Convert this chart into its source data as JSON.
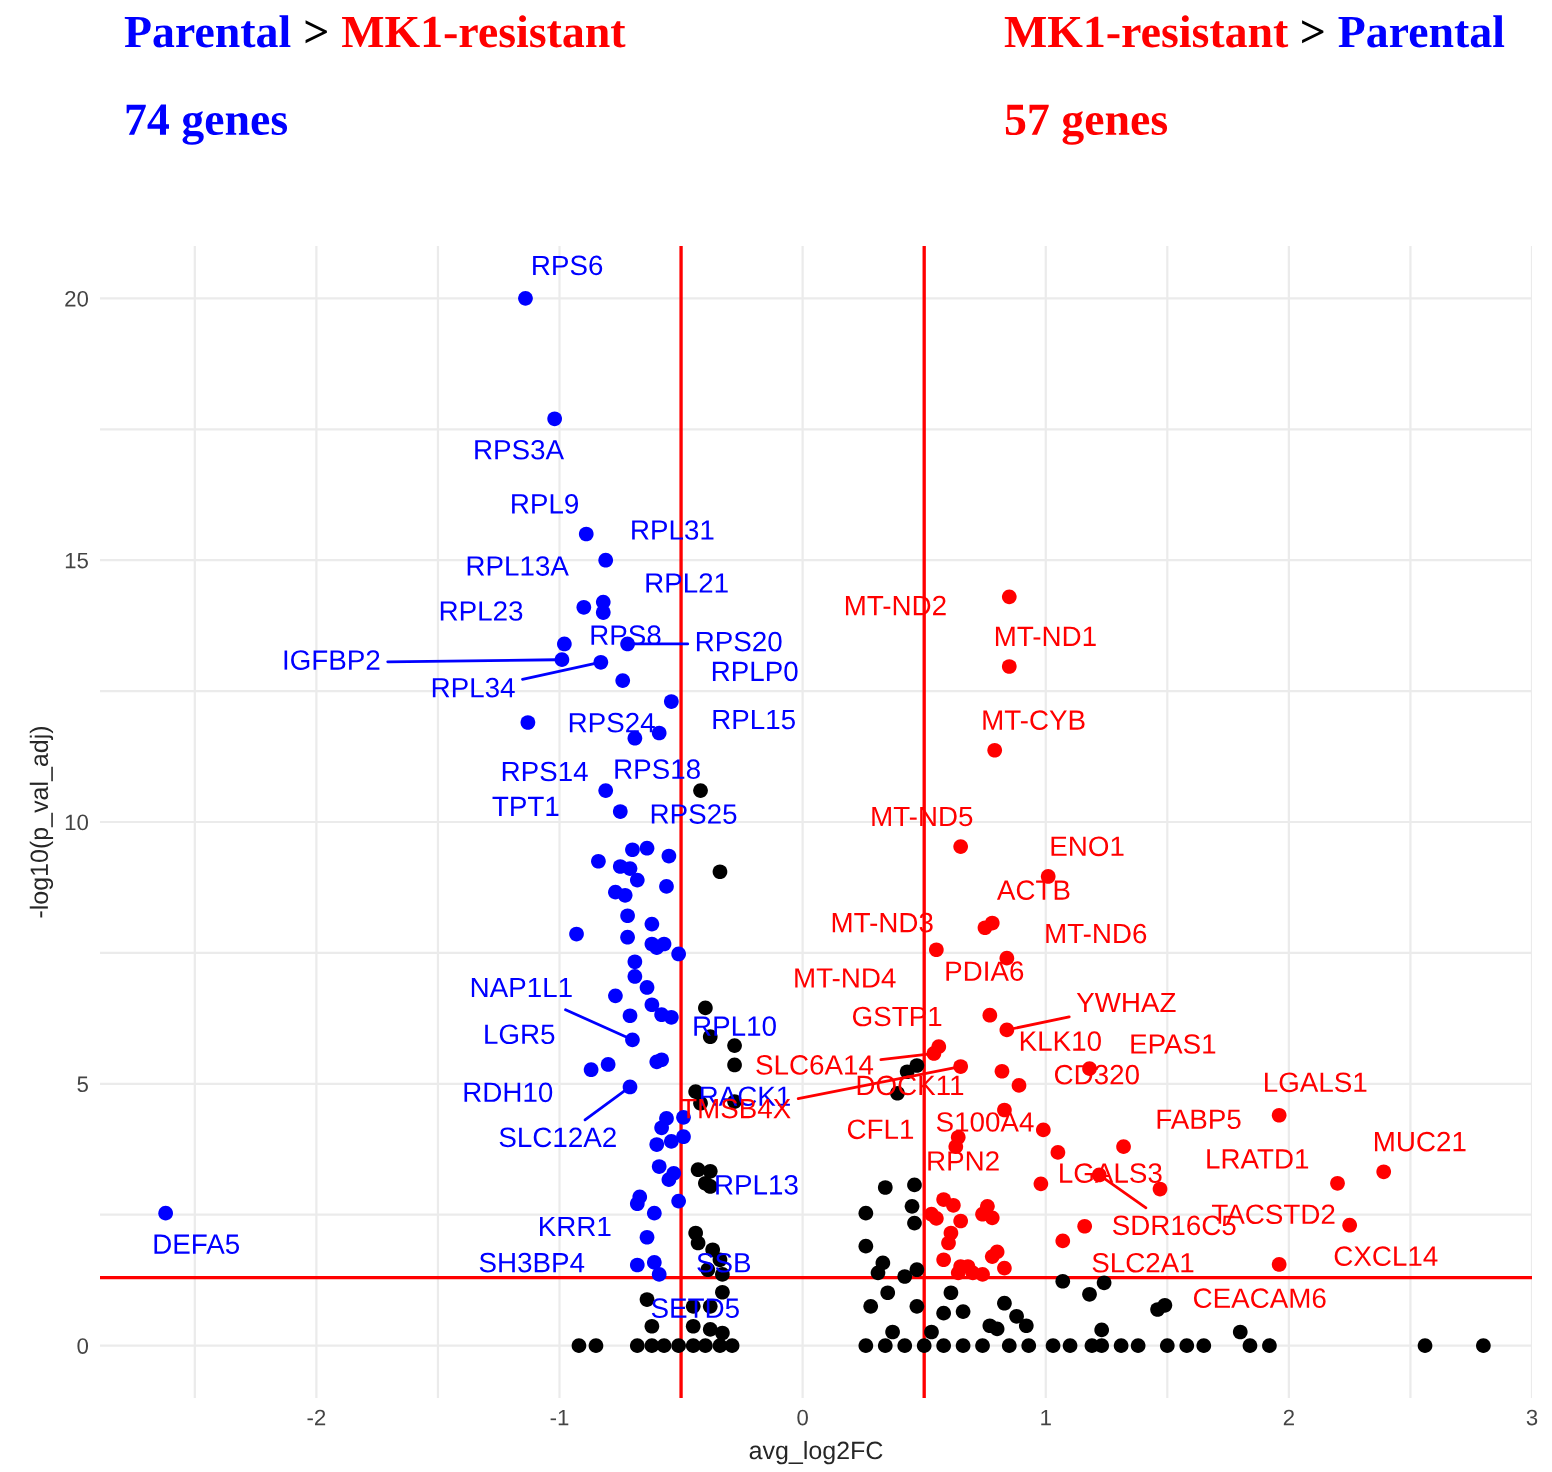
{
  "chart_data": {
    "type": "scatter",
    "xlabel": "avg_log2FC",
    "ylabel": "-log10(p_val_adj)",
    "xlim": [
      -2.89,
      3.0
    ],
    "ylim": [
      -1,
      21
    ],
    "xticks": [
      {
        "value": -2.5,
        "label": null
      },
      -2,
      {
        "value": -1.5,
        "label": null
      },
      -1,
      0,
      1,
      {
        "value": 1.5,
        "label": null
      },
      2,
      {
        "value": 2.5,
        "label": null
      },
      3
    ],
    "yticks": [
      0,
      {
        "value": 2.5,
        "label": null
      },
      5,
      {
        "value": 7.5,
        "label": null
      },
      10,
      {
        "value": 12.5,
        "label": null
      },
      15,
      {
        "value": 17.5,
        "label": null
      },
      20
    ],
    "grid": true,
    "legend": false,
    "marker": "circle",
    "series": [
      {
        "color": "#0000ff",
        "x": [
          -1.14,
          -1.02,
          -0.89,
          -0.81,
          -0.9,
          -0.82,
          -0.98,
          -0.82,
          -0.99,
          -0.83,
          -0.72,
          -0.74,
          -0.54,
          -0.59,
          -0.69,
          -1.13,
          -0.81,
          -0.75,
          -0.7,
          -0.64,
          -0.55,
          -0.84,
          -0.75,
          -0.71,
          -0.68,
          -0.56,
          -0.77,
          -0.73,
          -0.72,
          -0.62,
          -0.93,
          -0.72,
          -0.62,
          -0.57,
          -0.6,
          -0.51,
          -0.69,
          -0.69,
          -0.64,
          -0.77,
          -0.71,
          -0.62,
          -0.58,
          -0.54,
          -0.7,
          -0.6,
          -0.58,
          -0.87,
          -0.8,
          -0.71,
          -0.56,
          -0.49,
          -0.58,
          -0.6,
          -0.54,
          -0.49,
          -0.59,
          -0.55,
          -0.53,
          -0.68,
          -0.67,
          -0.61,
          -0.51,
          -0.64,
          -0.68,
          -0.61,
          -0.59,
          -2.62
        ],
        "values": [
          20.0,
          17.7,
          15.5,
          15.0,
          14.1,
          14.2,
          13.4,
          14.0,
          13.1,
          13.05,
          13.4,
          12.7,
          12.3,
          11.7,
          11.6,
          11.9,
          10.6,
          10.2,
          9.47,
          9.5,
          9.35,
          9.25,
          9.15,
          9.11,
          8.89,
          8.77,
          8.66,
          8.6,
          8.21,
          8.05,
          7.86,
          7.8,
          7.67,
          7.67,
          7.6,
          7.48,
          7.33,
          7.05,
          6.84,
          6.68,
          6.3,
          6.51,
          6.32,
          6.27,
          5.84,
          5.42,
          5.46,
          5.27,
          5.37,
          4.94,
          4.34,
          4.36,
          4.16,
          3.84,
          3.9,
          3.99,
          3.42,
          3.17,
          3.29,
          2.71,
          2.84,
          2.53,
          2.76,
          2.07,
          1.54,
          1.59,
          1.36,
          2.53
        ]
      },
      {
        "color": "#ff0000",
        "x": [
          0.85,
          0.85,
          0.79,
          0.65,
          1.01,
          0.78,
          0.75,
          0.55,
          0.84,
          0.77,
          0.84,
          0.56,
          0.54,
          0.65,
          0.82,
          0.89,
          1.18,
          0.83,
          1.96,
          0.64,
          0.63,
          0.99,
          1.05,
          1.32,
          2.39,
          2.2,
          1.47,
          1.22,
          0.98,
          2.25,
          1.16,
          1.07,
          1.96,
          0.53,
          0.58,
          0.62,
          0.65,
          0.55,
          0.74,
          0.78,
          0.76,
          0.61,
          0.6,
          0.58,
          0.8,
          0.78,
          0.83,
          0.65,
          0.68,
          0.7,
          0.74,
          0.64
        ],
        "values": [
          14.3,
          12.97,
          11.37,
          9.53,
          8.96,
          8.07,
          7.98,
          7.56,
          7.4,
          6.31,
          6.03,
          5.71,
          5.58,
          5.33,
          5.24,
          4.97,
          5.29,
          4.5,
          4.4,
          3.98,
          3.8,
          4.12,
          3.69,
          3.8,
          3.32,
          3.1,
          2.99,
          3.26,
          3.09,
          2.3,
          2.28,
          2.0,
          1.55,
          2.51,
          2.79,
          2.68,
          2.38,
          2.43,
          2.51,
          2.44,
          2.66,
          2.15,
          1.96,
          1.64,
          1.79,
          1.7,
          1.48,
          1.51,
          1.51,
          1.39,
          1.36,
          1.39
        ]
      },
      {
        "color": "#000000",
        "x": [
          0.26,
          0.34,
          0.42,
          0.5,
          0.58,
          0.66,
          0.74,
          0.85,
          0.93,
          1.03,
          1.1,
          1.19,
          1.23,
          1.31,
          1.38,
          1.5,
          1.58,
          1.65,
          1.84,
          1.92,
          2.56,
          2.8,
          0.34,
          0.46,
          0.26,
          0.45,
          0.46,
          0.26,
          0.33,
          0.31,
          0.42,
          0.47,
          1.07,
          1.18,
          1.24,
          1.46,
          1.49,
          1.8,
          1.23,
          0.35,
          0.28,
          0.47,
          0.58,
          0.66,
          0.77,
          0.83,
          0.88,
          0.92,
          0.37,
          0.53,
          0.61,
          0.8,
          0.43,
          0.47,
          0.39,
          -0.42,
          -0.34,
          -0.4,
          -0.38,
          -0.28,
          -0.28,
          -0.44,
          -0.42,
          -0.28,
          -0.43,
          -0.38,
          -0.4,
          -0.38,
          -0.44,
          -0.43,
          -0.37,
          -0.34,
          -0.39,
          -0.33,
          -0.33,
          -0.64,
          -0.45,
          -0.38,
          -0.62,
          -0.45,
          -0.38,
          -0.33,
          -0.92,
          -0.85,
          -0.68,
          -0.62,
          -0.57,
          -0.51,
          -0.45,
          -0.4,
          -0.34,
          -0.29
        ],
        "values": [
          0,
          0,
          0,
          0,
          0,
          0,
          0,
          0,
          0,
          0,
          0,
          0,
          0,
          0,
          0,
          0,
          0,
          0,
          0,
          0,
          0,
          0,
          3.02,
          3.07,
          2.53,
          2.66,
          2.34,
          1.9,
          1.58,
          1.39,
          1.32,
          1.45,
          1.23,
          0.98,
          1.2,
          0.69,
          0.77,
          0.26,
          0.3,
          1.01,
          0.75,
          0.75,
          0.62,
          0.65,
          0.38,
          0.81,
          0.56,
          0.38,
          0.26,
          0.26,
          1.01,
          0.32,
          5.23,
          5.35,
          4.82,
          10.6,
          9.05,
          6.45,
          5.9,
          5.73,
          5.36,
          4.85,
          4.63,
          4.66,
          3.36,
          3.33,
          3.1,
          3.04,
          2.15,
          1.96,
          1.83,
          1.64,
          1.45,
          1.36,
          1.02,
          0.88,
          0.75,
          0.75,
          0.37,
          0.37,
          0.31,
          0.24,
          0,
          0,
          0,
          0,
          0,
          0,
          0,
          0,
          0,
          0
        ]
      }
    ],
    "ref_lines": [
      {
        "axis": "x",
        "value": -0.5,
        "color": "#ff0000"
      },
      {
        "axis": "x",
        "value": 0.5,
        "color": "#ff0000"
      },
      {
        "axis": "y",
        "value": 1.3,
        "color": "#ff0000"
      }
    ],
    "annotations": [
      "Parental",
      ">",
      "MK1-resistant",
      "74 genes",
      "MK1-resistant",
      ">",
      "Parental",
      "57 genes",
      {
        "text": "RPS6",
        "x": -1.14,
        "y": 20.0
      },
      {
        "text": "RPS3A",
        "x": -1.02,
        "y": 17.7
      },
      {
        "text": "RPL9",
        "x": -0.89,
        "y": 15.5
      },
      {
        "text": "RPL31",
        "x": -0.81,
        "y": 15.0
      },
      {
        "text": "RPL13A",
        "x": -0.9,
        "y": 14.1
      },
      {
        "text": "RPL21",
        "x": -0.82,
        "y": 14.2
      },
      {
        "text": "RPL23",
        "x": -0.98,
        "y": 13.4
      },
      {
        "text": "RPS8",
        "x": -0.82,
        "y": 14.0
      },
      {
        "text": "IGFBP2",
        "x": -0.99,
        "y": 13.1
      },
      {
        "text": "RPL34",
        "x": -0.83,
        "y": 13.05
      },
      {
        "text": "RPS20",
        "x": -0.72,
        "y": 13.4
      },
      {
        "text": "RPS24",
        "x": -0.74,
        "y": 12.7
      },
      {
        "text": "RPLP0",
        "x": -0.54,
        "y": 12.3
      },
      {
        "text": "RPL15",
        "x": -0.59,
        "y": 11.7
      },
      {
        "text": "RPS18",
        "x": -0.69,
        "y": 11.6
      },
      {
        "text": "RPS14",
        "x": -0.81,
        "y": 10.6
      },
      {
        "text": "TPT1",
        "x": -0.75,
        "y": 10.2
      },
      {
        "text": "RPS25",
        "x": -0.7,
        "y": 9.47
      },
      {
        "text": "NAP1L1",
        "x": -0.7,
        "y": 5.84
      },
      {
        "text": "LGR5",
        "x": -0.8,
        "y": 5.37
      },
      {
        "text": "RPL10",
        "x": -0.6,
        "y": 5.42
      },
      {
        "text": "RDH10",
        "x": -0.87,
        "y": 5.27
      },
      {
        "text": "RACK1",
        "x": -0.58,
        "y": 5.46
      },
      {
        "text": "SLC12A2",
        "x": -0.71,
        "y": 4.94
      },
      {
        "text": "KRR1",
        "x": -0.64,
        "y": 2.07
      },
      {
        "text": "RPL13",
        "x": -0.51,
        "y": 2.76
      },
      {
        "text": "SH3BP4",
        "x": -0.68,
        "y": 1.54
      },
      {
        "text": "SSB",
        "x": -0.61,
        "y": 1.59
      },
      {
        "text": "SETD5",
        "x": -0.59,
        "y": 1.36
      },
      {
        "text": "DEFA5",
        "x": -2.62,
        "y": 2.53
      },
      {
        "text": "MT-ND2",
        "x": 0.85,
        "y": 14.3
      },
      {
        "text": "MT-ND1",
        "x": 0.85,
        "y": 12.97
      },
      {
        "text": "MT-CYB",
        "x": 0.79,
        "y": 11.37
      },
      {
        "text": "MT-ND5",
        "x": 0.65,
        "y": 9.53
      },
      {
        "text": "ENO1",
        "x": 1.01,
        "y": 8.96
      },
      {
        "text": "ACTB",
        "x": 0.78,
        "y": 8.07
      },
      {
        "text": "MT-ND3",
        "x": 0.75,
        "y": 7.98
      },
      {
        "text": "MT-ND6",
        "x": 0.84,
        "y": 7.4
      },
      {
        "text": "MT-ND4",
        "x": 0.55,
        "y": 7.56
      },
      {
        "text": "PDIA6",
        "x": 0.77,
        "y": 6.31
      },
      {
        "text": "YWHAZ",
        "x": 0.84,
        "y": 6.03
      },
      {
        "text": "GSTP1",
        "x": 0.56,
        "y": 5.71
      },
      {
        "text": "SLC6A14",
        "x": 0.54,
        "y": 5.58
      },
      {
        "text": "TMSB4X",
        "x": 0.65,
        "y": 5.33
      },
      {
        "text": "KLK10",
        "x": 0.82,
        "y": 5.24
      },
      {
        "text": "EPAS1",
        "x": 1.18,
        "y": 5.29
      },
      {
        "text": "DOCK11",
        "x": 0.83,
        "y": 4.5
      },
      {
        "text": "CD320",
        "x": 0.89,
        "y": 4.97
      },
      {
        "text": "LGALS1",
        "x": 1.96,
        "y": 4.4
      },
      {
        "text": "CFL1",
        "x": 0.64,
        "y": 3.98
      },
      {
        "text": "S100A4",
        "x": 0.99,
        "y": 4.12
      },
      {
        "text": "FABP5",
        "x": 1.32,
        "y": 3.8
      },
      {
        "text": "MUC21",
        "x": 2.39,
        "y": 3.32
      },
      {
        "text": "RPN2",
        "x": 0.58,
        "y": 2.79
      },
      {
        "text": "LGALS3",
        "x": 0.98,
        "y": 3.09
      },
      {
        "text": "LRATD1",
        "x": 1.47,
        "y": 2.99
      },
      {
        "text": "TACSTD2",
        "x": 2.2,
        "y": 3.1
      },
      {
        "text": "SDR16C5",
        "x": 1.22,
        "y": 3.26
      },
      {
        "text": "CXCL14",
        "x": 2.25,
        "y": 2.3
      },
      {
        "text": "SLC2A1",
        "x": 1.16,
        "y": 2.28
      },
      {
        "text": "CEACAM6",
        "x": 1.96,
        "y": 1.55
      }
    ]
  }
}
